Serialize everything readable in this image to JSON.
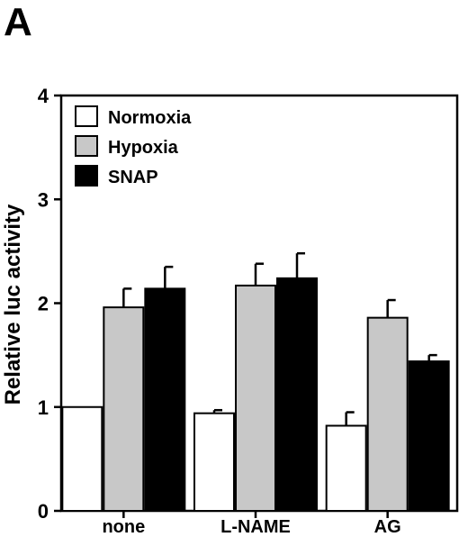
{
  "panel_label": "A",
  "chart_data": {
    "type": "bar",
    "title": "",
    "xlabel": "",
    "ylabel": "Relative luc activity",
    "ylim": [
      0,
      4
    ],
    "yticks": [
      0,
      1,
      2,
      3,
      4
    ],
    "grid": false,
    "legend_position": "top-left",
    "categories": [
      "none",
      "L-NAME",
      "AG"
    ],
    "series": [
      {
        "name": "Normoxia",
        "color": "#ffffff",
        "values": [
          1.0,
          0.94,
          0.82
        ],
        "errors": [
          0.0,
          0.03,
          0.13
        ]
      },
      {
        "name": "Hypoxia",
        "color": "#c8c8c8",
        "values": [
          1.96,
          2.17,
          1.86
        ],
        "errors": [
          0.18,
          0.21,
          0.17
        ]
      },
      {
        "name": "SNAP",
        "color": "#000000",
        "values": [
          2.14,
          2.24,
          1.44
        ],
        "errors": [
          0.21,
          0.24,
          0.06
        ]
      }
    ]
  }
}
